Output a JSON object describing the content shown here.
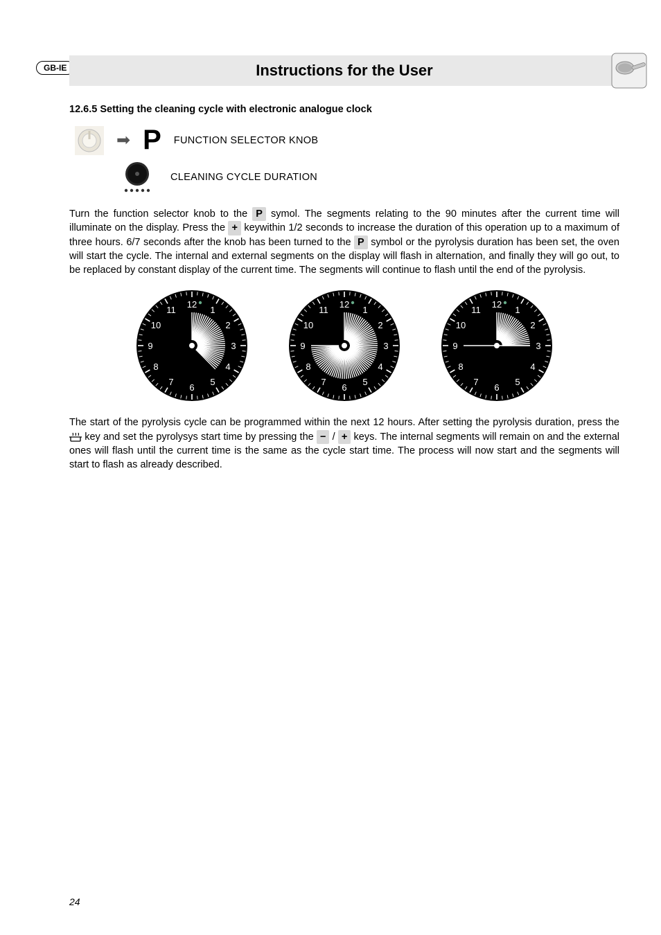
{
  "badge": "GB-IE",
  "header_title": "Instructions for the User",
  "section_heading": "12.6.5  Setting the cleaning cycle with electronic analogue clock",
  "knob_label": "FUNCTION SELECTOR KNOB",
  "duration_label": "CLEANING CYCLE DURATION",
  "p_symbol": "P",
  "plus_symbol": "+",
  "minus_symbol": "−",
  "para1_a": "Turn the function selector knob to the ",
  "para1_b": " symol. The segments relating to the 90 minutes after the current time will illuminate on the display. Press the ",
  "para1_c": " keywithin 1/2 seconds to increase the duration of this operation up to a maximum of three hours. 6/7 seconds after the knob has been turned to the ",
  "para1_d": " symbol or the pyrolysis duration has been set, the oven will start the cycle. The internal and external segments on the display will flash in alternation, and finally they will go out, to be replaced by constant display of the current time. The segments will continue to flash until the end of the pyrolysis.",
  "para2_a": "The start of the pyrolysis cycle can be programmed within the next 12 hours. After setting the pyrolysis duration, press the ",
  "para2_b": " key and set the pyrolysys start time by pressing the ",
  "para2_c": " / ",
  "para2_d": " keys. The internal segments will remain on and the external ones will flash until the current time is the same as the cycle start time. The process will now start and the segments will start to flash as already described.",
  "page_number": "24",
  "clock": {
    "numbers": [
      "12",
      "1",
      "2",
      "3",
      "4",
      "5",
      "6",
      "7",
      "8",
      "9",
      "10",
      "11"
    ],
    "bg": "#000000",
    "fg": "#ffffff",
    "size": 170
  },
  "colors": {
    "header_bg": "#e8e8e8",
    "inline_bg": "#d8d8d8",
    "text": "#000000"
  }
}
